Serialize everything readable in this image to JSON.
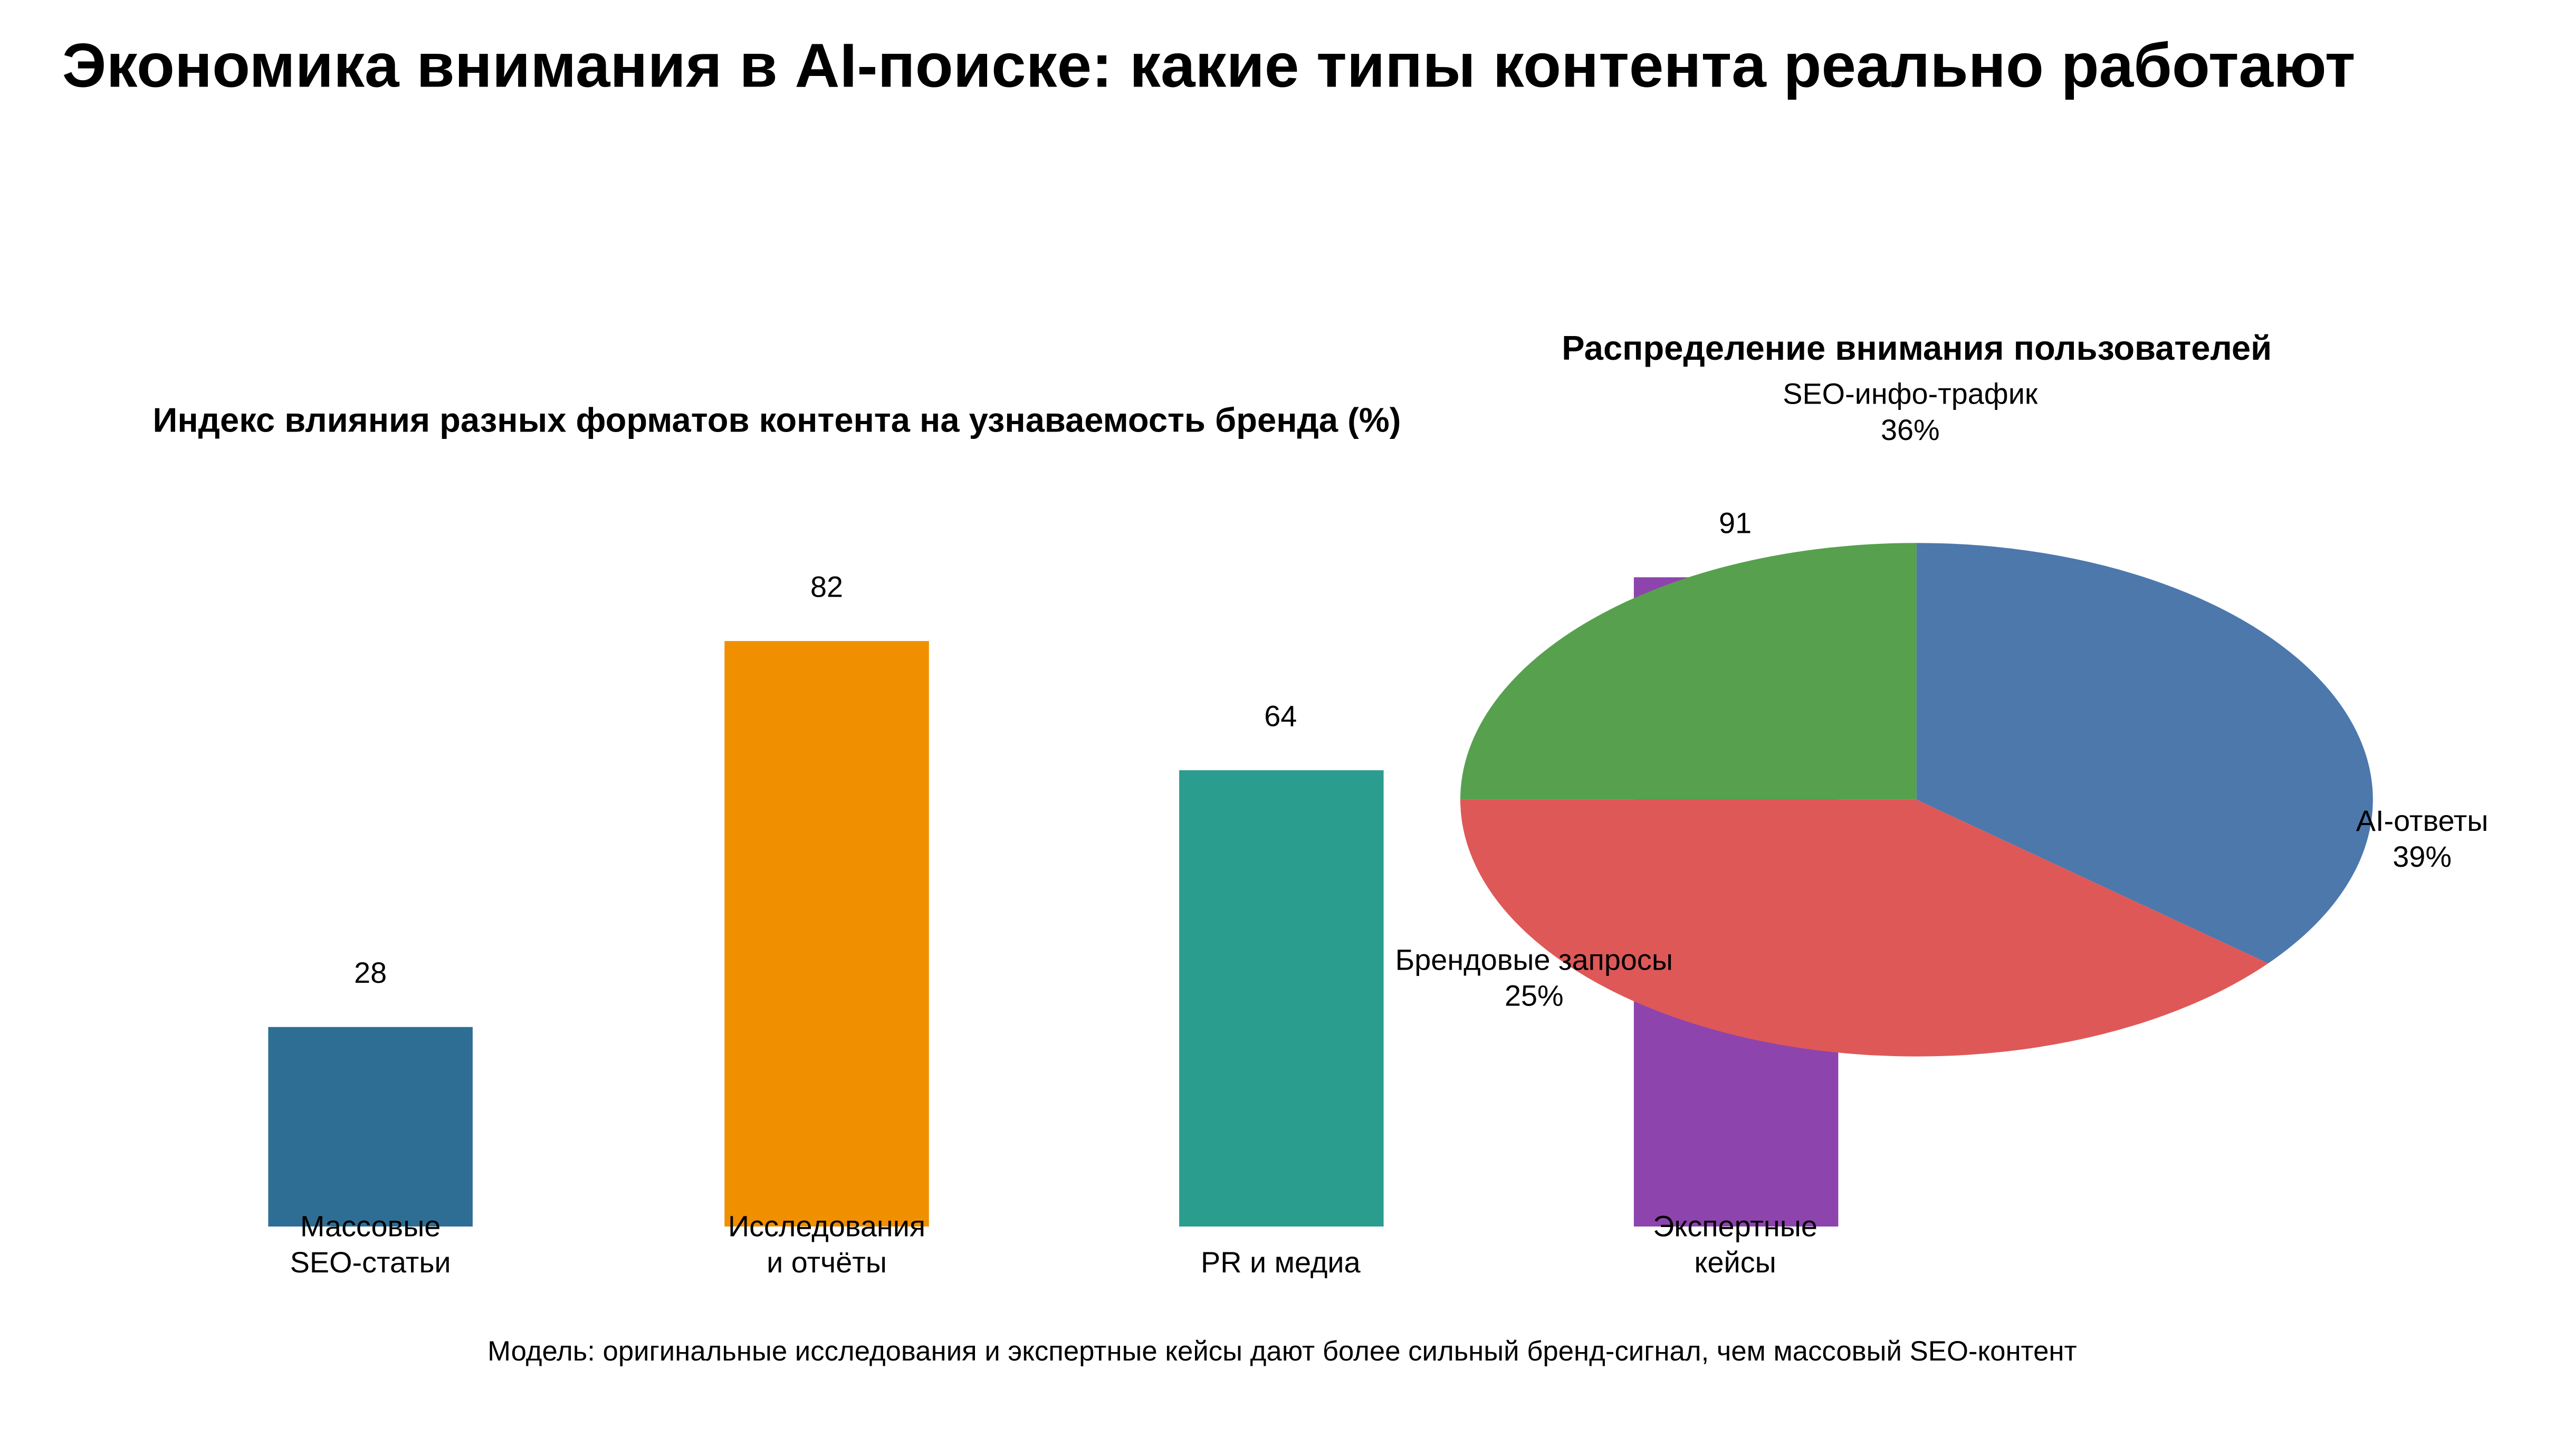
{
  "title": "Экономика внимания в AI-поиске: какие типы контента реально работают",
  "bar_section": {
    "title": "Индекс влияния разных форматов контента на узнаваемость бренда (%)"
  },
  "pie_section": {
    "title": "Распределение внимания пользователей"
  },
  "caption": "Модель: оригинальные исследования и экспертные кейсы дают более сильный бренд-сигнал, чем массовый SEO-контент",
  "colors": {
    "bar_massive_seo": "#2e6e94",
    "bar_research": "#f08f00",
    "bar_pr_media": "#2a9d8f",
    "bar_expert_cases": "#8e44ad",
    "pie_seo_info": "#57a04e",
    "pie_ai_answers": "#4c78ac",
    "pie_brand_queries": "#de5858",
    "text": "#000000",
    "background": "#ffffff"
  },
  "chart_data": [
    {
      "type": "bar",
      "title": "Индекс влияния разных форматов контента на узнаваемость бренда (%)",
      "categories": [
        "Массовые SEO-статьи",
        "Исследования и отчёты",
        "PR и медиа",
        "Экспертные кейсы"
      ],
      "category_lines": [
        [
          "Массовые",
          "SEO-статьи"
        ],
        [
          "Исследования",
          "и отчёты"
        ],
        [
          "PR и медиа"
        ],
        [
          "Экспертные",
          "кейсы"
        ]
      ],
      "values": [
        28,
        82,
        64,
        91
      ],
      "value_labels": [
        "28",
        "82",
        "64",
        "91"
      ],
      "bar_colors": [
        "#2e6e94",
        "#f08f00",
        "#2a9d8f",
        "#8e44ad"
      ],
      "xlabel": "",
      "ylabel": "",
      "ylim": [
        0,
        100
      ],
      "grid": false,
      "legend": false,
      "axes_visible": false
    },
    {
      "type": "pie",
      "title": "Распределение внимания пользователей",
      "labels": [
        "SEO-инфо-трафик",
        "AI-ответы",
        "Брендовые запросы"
      ],
      "values": [
        36,
        39,
        25
      ],
      "pct_labels": [
        "36%",
        "39%",
        "25%"
      ],
      "colors": [
        "#57a04e",
        "#4c78ac",
        "#de5858"
      ],
      "legend": false,
      "label_position": "outside"
    }
  ]
}
